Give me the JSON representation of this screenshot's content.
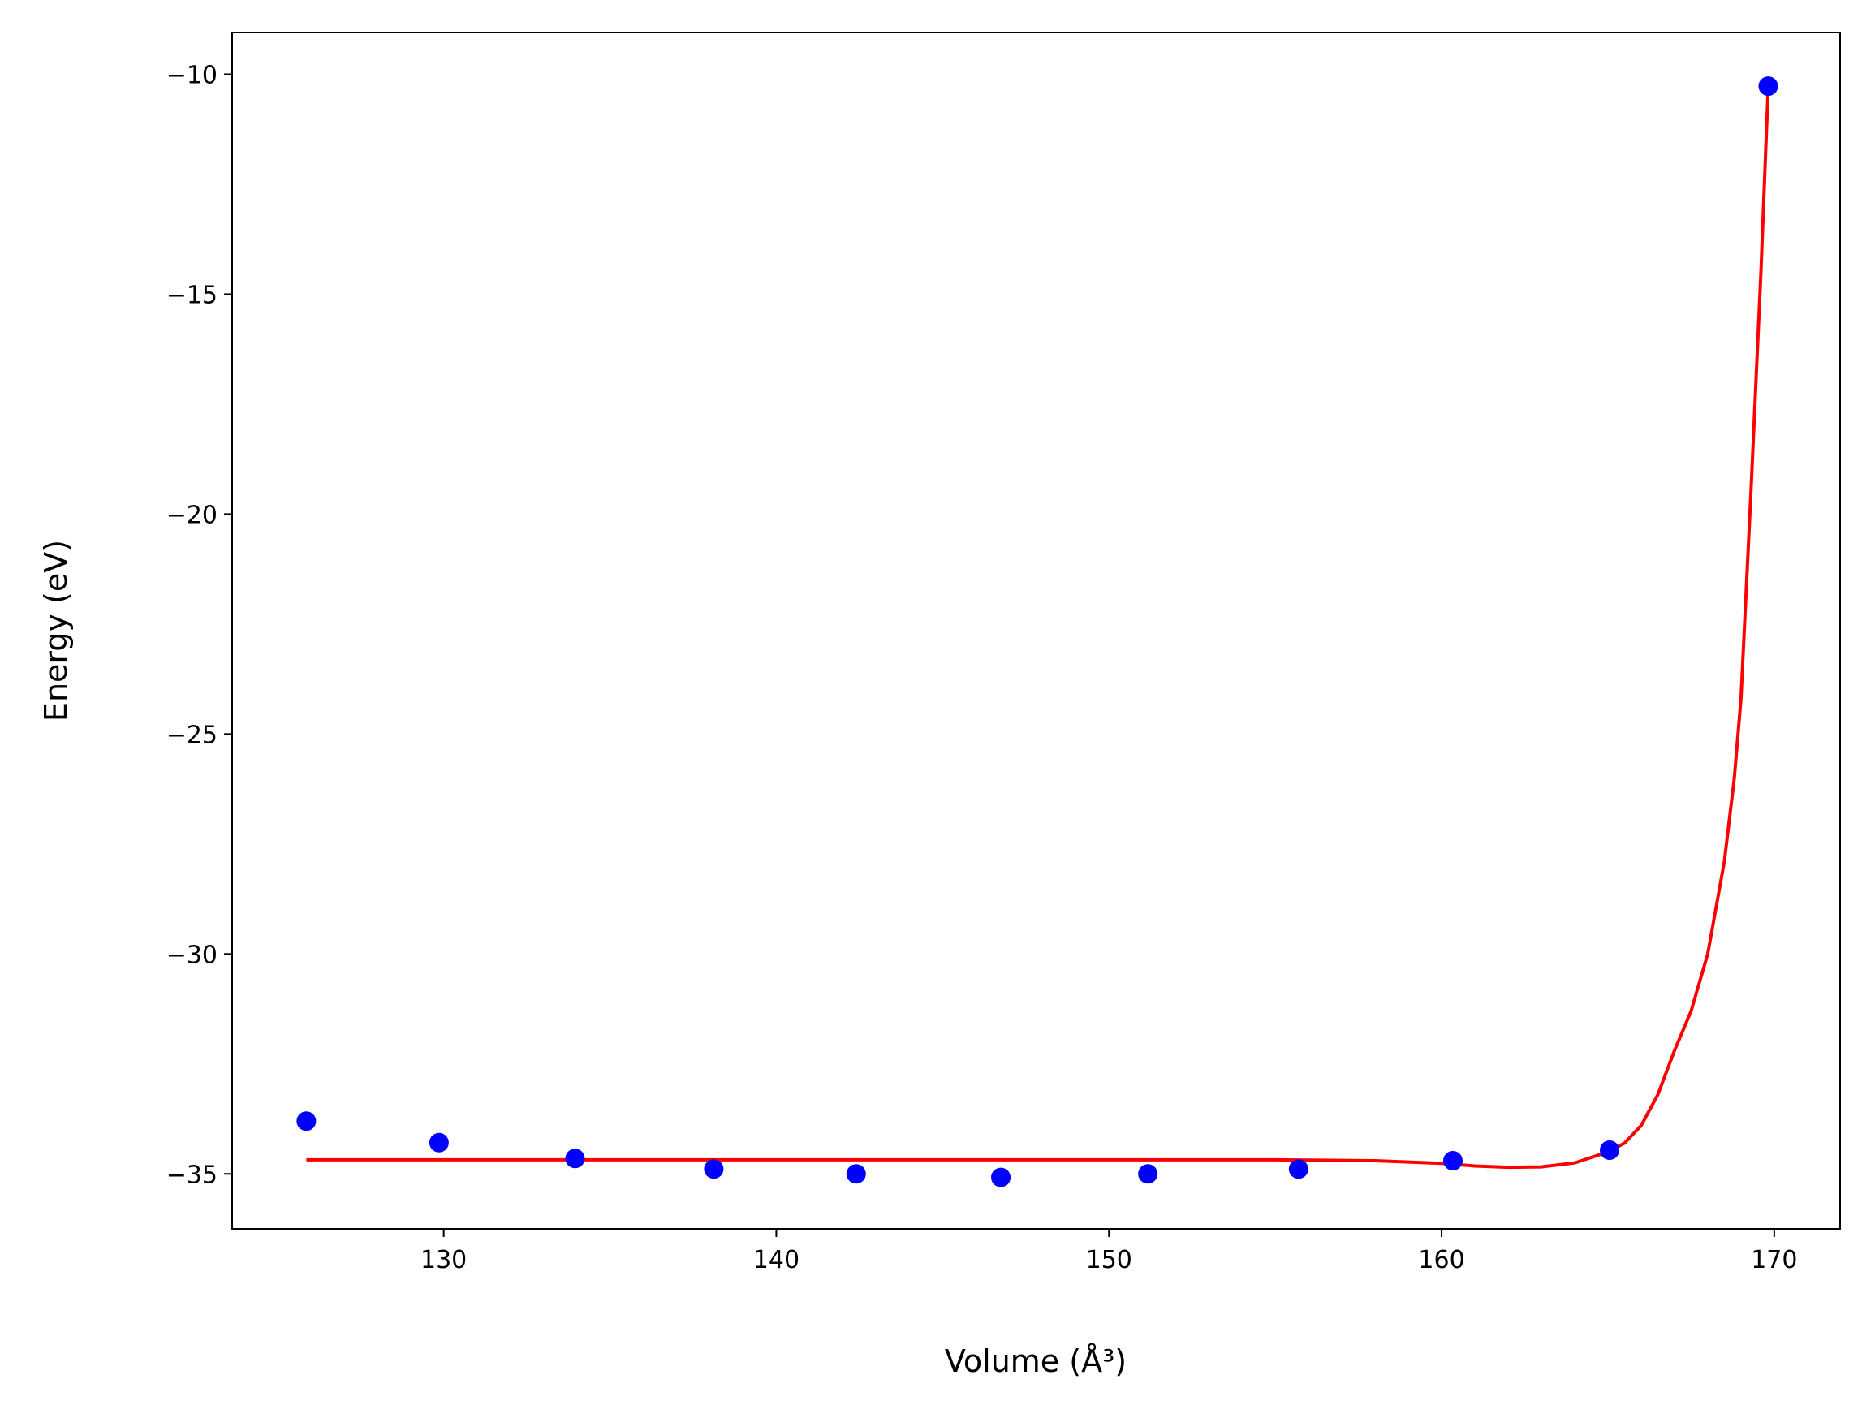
{
  "chart_data": {
    "type": "scatter",
    "xlabel": "Volume (Å³)",
    "ylabel": "Energy (eV)",
    "xlim": [
      123.64,
      171.98
    ],
    "ylim": [
      -36.25,
      -9.05
    ],
    "xticks": [
      130,
      140,
      150,
      160,
      170
    ],
    "yticks": [
      {
        "value": -10,
        "label": "−10"
      },
      {
        "value": -15,
        "label": "−15"
      },
      {
        "value": -20,
        "label": "−20"
      },
      {
        "value": -25,
        "label": "−25"
      },
      {
        "value": -30,
        "label": "−30"
      },
      {
        "value": -35,
        "label": "−35"
      }
    ],
    "grid": false,
    "series": [
      {
        "type": "line",
        "color": "red",
        "x": [
          125.87,
          130,
          135,
          140,
          145,
          150,
          155,
          158,
          160,
          161,
          162,
          163,
          164,
          165,
          165.5,
          166,
          166.5,
          167,
          167.5,
          168,
          168.5,
          168.8,
          169,
          169.3,
          169.6,
          169.82
        ],
        "values": [
          -34.68,
          -34.68,
          -34.68,
          -34.68,
          -34.68,
          -34.68,
          -34.68,
          -34.7,
          -34.76,
          -34.82,
          -34.85,
          -34.84,
          -34.75,
          -34.5,
          -34.3,
          -33.9,
          -33.2,
          -32.2,
          -31.3,
          -30.0,
          -27.9,
          -26.0,
          -24.2,
          -19.5,
          -14.5,
          -10.27
        ]
      },
      {
        "type": "scatter",
        "color": "blue",
        "x": [
          125.87,
          129.86,
          133.95,
          138.12,
          142.4,
          146.75,
          151.17,
          155.7,
          160.34,
          165.05,
          169.82
        ],
        "values": [
          -33.8,
          -34.29,
          -34.65,
          -34.89,
          -35.0,
          -35.08,
          -35.0,
          -34.89,
          -34.7,
          -34.46,
          -10.27
        ]
      }
    ]
  }
}
